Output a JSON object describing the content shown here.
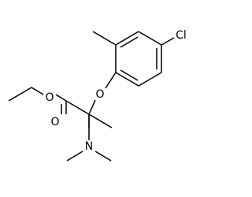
{
  "atoms": {
    "chlorine": "Cl",
    "ether_oxygen": "O",
    "ester_oxygen": "O",
    "carbonyl_oxygen": "O",
    "nitrogen": "N"
  }
}
